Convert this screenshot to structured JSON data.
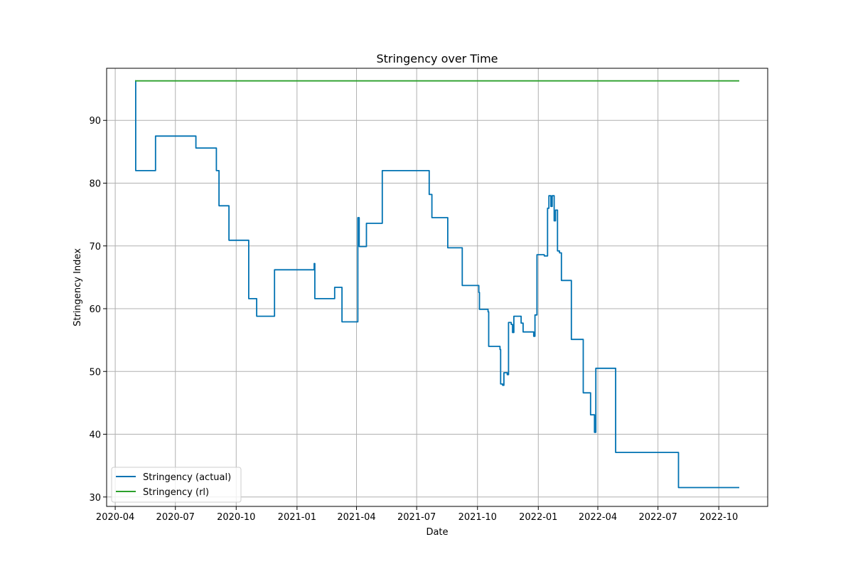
{
  "chart_data": {
    "type": "line",
    "title": "Stringency over Time",
    "xlabel": "Date",
    "ylabel": "Stringency Index",
    "x_ticks": [
      "2020-04",
      "2020-07",
      "2020-10",
      "2021-01",
      "2021-04",
      "2021-07",
      "2021-10",
      "2022-01",
      "2022-04",
      "2022-07",
      "2022-10"
    ],
    "y_ticks": [
      30,
      40,
      50,
      60,
      70,
      80,
      90
    ],
    "xlim": [
      "2020-03-19",
      "2022-12-14"
    ],
    "ylim": [
      28.5,
      98.3
    ],
    "grid": true,
    "legend_position": "lower-left",
    "colors": {
      "actual": "#0072B2",
      "rl": "#2ca02c"
    },
    "series": [
      {
        "name": "Stringency (actual)",
        "color": "#0072B2",
        "step": true,
        "points": [
          [
            "2020-05-01",
            96.3
          ],
          [
            "2020-05-02",
            82.0
          ],
          [
            "2020-06-01",
            87.5
          ],
          [
            "2020-08-01",
            85.6
          ],
          [
            "2020-09-01",
            82.0
          ],
          [
            "2020-09-05",
            76.4
          ],
          [
            "2020-09-20",
            70.9
          ],
          [
            "2020-10-20",
            61.6
          ],
          [
            "2020-11-01",
            58.8
          ],
          [
            "2020-11-28",
            66.2
          ],
          [
            "2021-01-27",
            67.2
          ],
          [
            "2021-01-28",
            61.6
          ],
          [
            "2021-02-27",
            63.4
          ],
          [
            "2021-03-10",
            57.9
          ],
          [
            "2021-04-03",
            74.5
          ],
          [
            "2021-04-05",
            69.9
          ],
          [
            "2021-04-16",
            73.6
          ],
          [
            "2021-05-10",
            82.0
          ],
          [
            "2021-07-20",
            78.2
          ],
          [
            "2021-07-24",
            74.5
          ],
          [
            "2021-08-17",
            69.7
          ],
          [
            "2021-09-08",
            63.7
          ],
          [
            "2021-10-03",
            62.6
          ],
          [
            "2021-10-04",
            59.9
          ],
          [
            "2021-10-17",
            59.5
          ],
          [
            "2021-10-18",
            54.0
          ],
          [
            "2021-11-04",
            53.5
          ],
          [
            "2021-11-05",
            48.0
          ],
          [
            "2021-11-08",
            47.8
          ],
          [
            "2021-11-10",
            49.8
          ],
          [
            "2021-11-15",
            49.5
          ],
          [
            "2021-11-17",
            57.8
          ],
          [
            "2021-11-21",
            57.5
          ],
          [
            "2021-11-23",
            56.2
          ],
          [
            "2021-11-25",
            58.8
          ],
          [
            "2021-12-06",
            57.7
          ],
          [
            "2021-12-09",
            56.3
          ],
          [
            "2021-12-25",
            55.6
          ],
          [
            "2021-12-27",
            59.0
          ],
          [
            "2021-12-30",
            68.6
          ],
          [
            "2022-01-10",
            68.4
          ],
          [
            "2022-01-15",
            76.0
          ],
          [
            "2022-01-17",
            78.0
          ],
          [
            "2022-01-20",
            76.3
          ],
          [
            "2022-01-22",
            78.0
          ],
          [
            "2022-01-25",
            74.0
          ],
          [
            "2022-01-27",
            75.7
          ],
          [
            "2022-01-30",
            69.2
          ],
          [
            "2022-02-02",
            68.9
          ],
          [
            "2022-02-05",
            64.5
          ],
          [
            "2022-02-20",
            55.1
          ],
          [
            "2022-03-10",
            46.6
          ],
          [
            "2022-03-21",
            43.1
          ],
          [
            "2022-03-27",
            40.3
          ],
          [
            "2022-03-29",
            50.5
          ],
          [
            "2022-04-28",
            37.1
          ],
          [
            "2022-08-01",
            31.5
          ],
          [
            "2022-11-01",
            31.5
          ]
        ]
      },
      {
        "name": "Stringency (rl)",
        "color": "#2ca02c",
        "step": false,
        "points": [
          [
            "2020-05-01",
            96.3
          ],
          [
            "2022-11-01",
            96.3
          ]
        ]
      }
    ]
  }
}
